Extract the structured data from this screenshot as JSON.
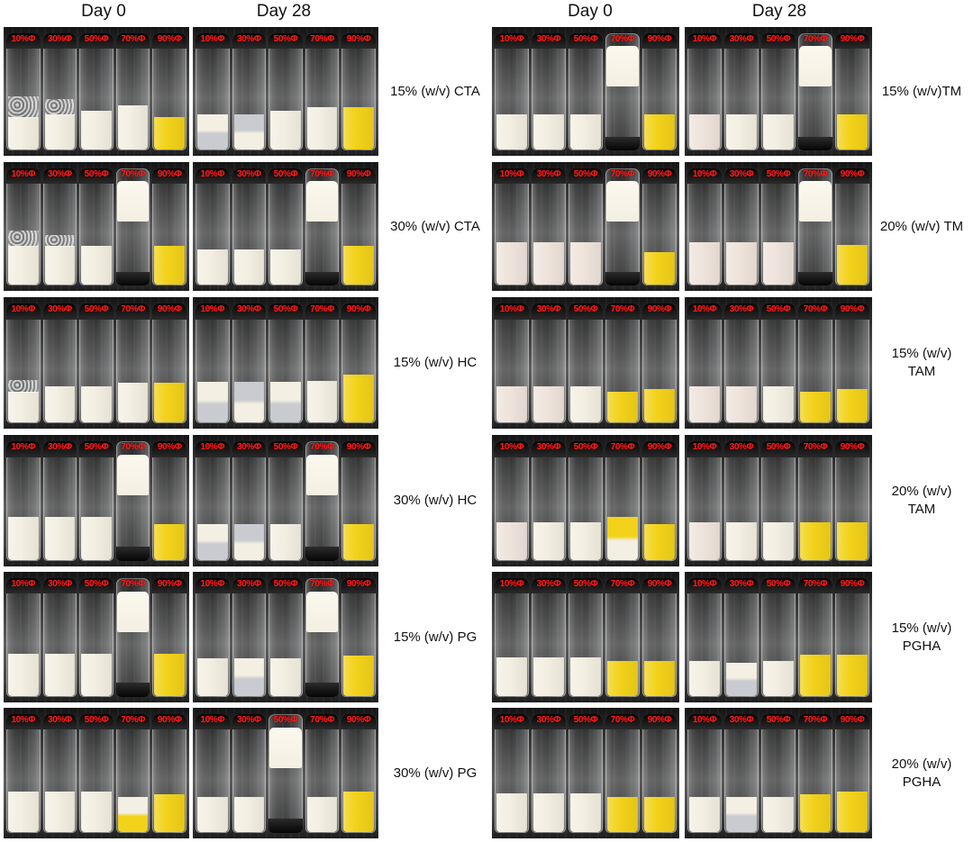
{
  "headers": {
    "left_day0": "Day 0",
    "left_day28": "Day 28",
    "right_day0": "Day 0",
    "right_day28": "Day 28"
  },
  "vial_labels": [
    "10%Φ",
    "30%Φ",
    "50%Φ",
    "70%Φ",
    "90%Φ"
  ],
  "row_labels": {
    "left": [
      "15% (w/v) CTA",
      "30% (w/v) CTA",
      "15% (w/v) HC",
      "30% (w/v) HC",
      "15% (w/v) PG",
      "30% (w/v) PG"
    ],
    "right": [
      "15% (w/v)TM",
      "20% (w/v) TM",
      "15% (w/v) TAM",
      "20% (w/v) TAM",
      "15% (w/v) PGHA",
      "20% (w/v) PGHA"
    ]
  },
  "colors": {
    "label_red": "#ff1a1a",
    "emulsion_white": "#f3efe2",
    "emulsion_pink": "#efe4dc",
    "oil_yellow": "#f2d21a",
    "aqueous_grey": "#c9cbd0"
  }
}
